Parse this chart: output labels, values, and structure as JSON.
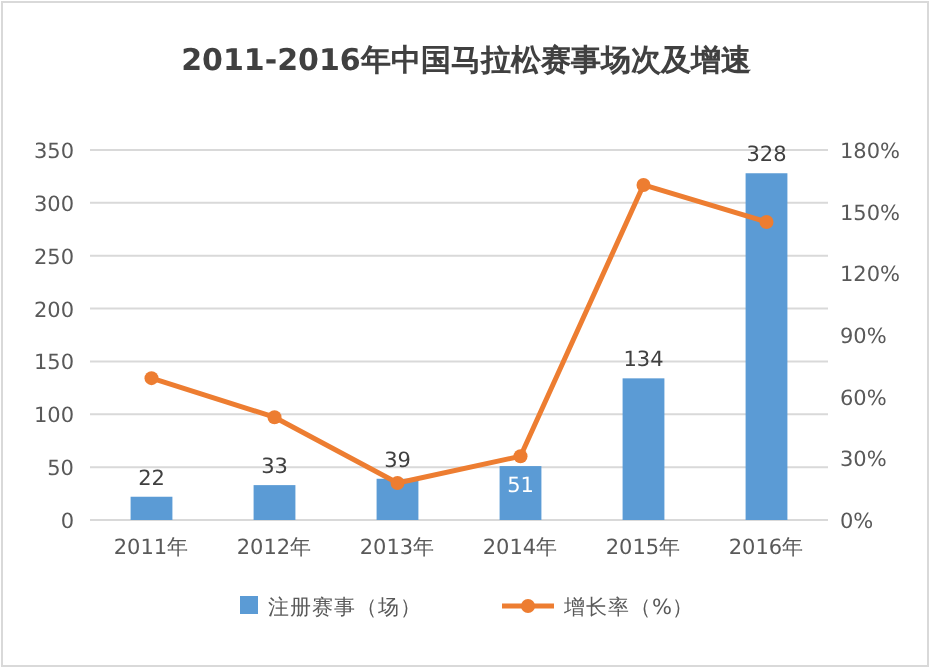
{
  "chart_data": {
    "type": "bar",
    "title": "2011-2016年中国马拉松赛事场次及增速",
    "categories": [
      "2011年",
      "2012年",
      "2013年",
      "2014年",
      "2015年",
      "2016年"
    ],
    "series": [
      {
        "name": "注册赛事（场）",
        "color": "#5b9bd5",
        "values": [
          22,
          33,
          39,
          51,
          134,
          328
        ],
        "value_labels": [
          "22",
          "33",
          "39",
          "51",
          "134",
          "328"
        ]
      },
      {
        "name": "增长率（%）",
        "type": "line",
        "axis": "y2",
        "color": "#ed7d31",
        "marker": "circle",
        "values": [
          69,
          50,
          18,
          31,
          163,
          145
        ]
      }
    ],
    "ylim": [
      0,
      350
    ],
    "yticks": [
      0,
      50,
      100,
      150,
      200,
      250,
      300,
      350
    ],
    "y2lim": [
      0,
      180
    ],
    "y2ticks": [
      {
        "value": 0,
        "label": "0%"
      },
      {
        "value": 30,
        "label": "30%"
      },
      {
        "value": 60,
        "label": "60%"
      },
      {
        "value": 90,
        "label": "90%"
      },
      {
        "value": 120,
        "label": "120%"
      },
      {
        "value": 150,
        "label": "150%"
      },
      {
        "value": 180,
        "label": "180%"
      }
    ],
    "grid": "y",
    "legend": "bottom"
  }
}
